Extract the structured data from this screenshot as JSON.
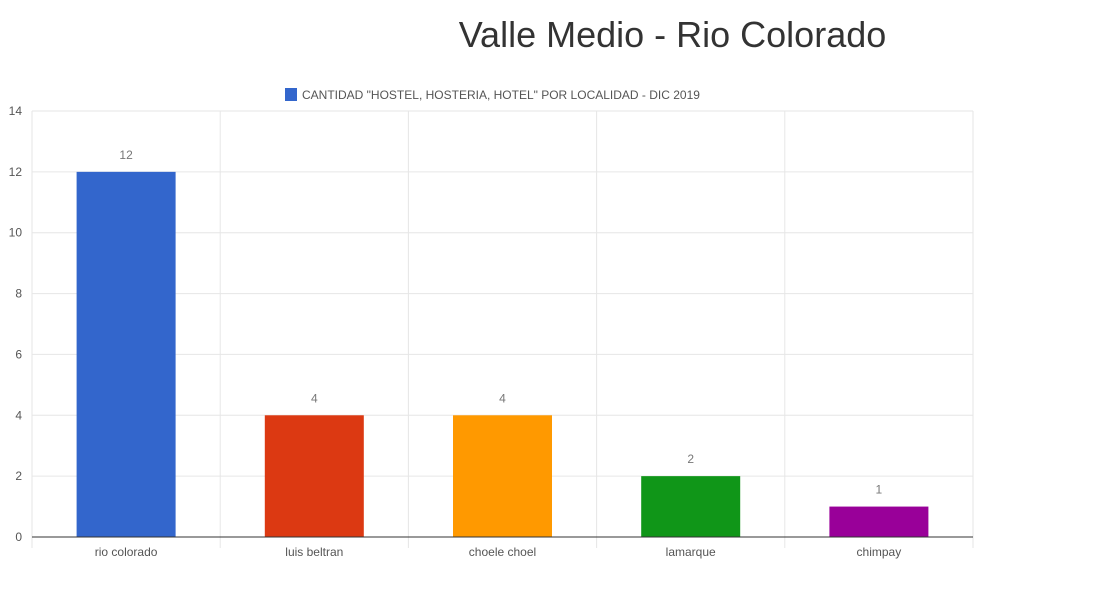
{
  "chart_data": {
    "type": "bar",
    "title": "Valle Medio - Rio Colorado",
    "legend": {
      "label": "CANTIDAD \"HOSTEL, HOSTERIA, HOTEL\" POR LOCALIDAD - DIC 2019",
      "color": "#3366cc",
      "position": "top"
    },
    "categories": [
      "rio colorado",
      "luis beltran",
      "choele choel",
      "lamarque",
      "chimpay"
    ],
    "values": [
      12,
      4,
      4,
      2,
      1
    ],
    "colors": [
      "#3366cc",
      "#dc3912",
      "#ff9900",
      "#109618",
      "#990099"
    ],
    "ylim": [
      0,
      14
    ],
    "yticks": [
      0,
      2,
      4,
      6,
      8,
      10,
      12,
      14
    ],
    "grid": true
  }
}
